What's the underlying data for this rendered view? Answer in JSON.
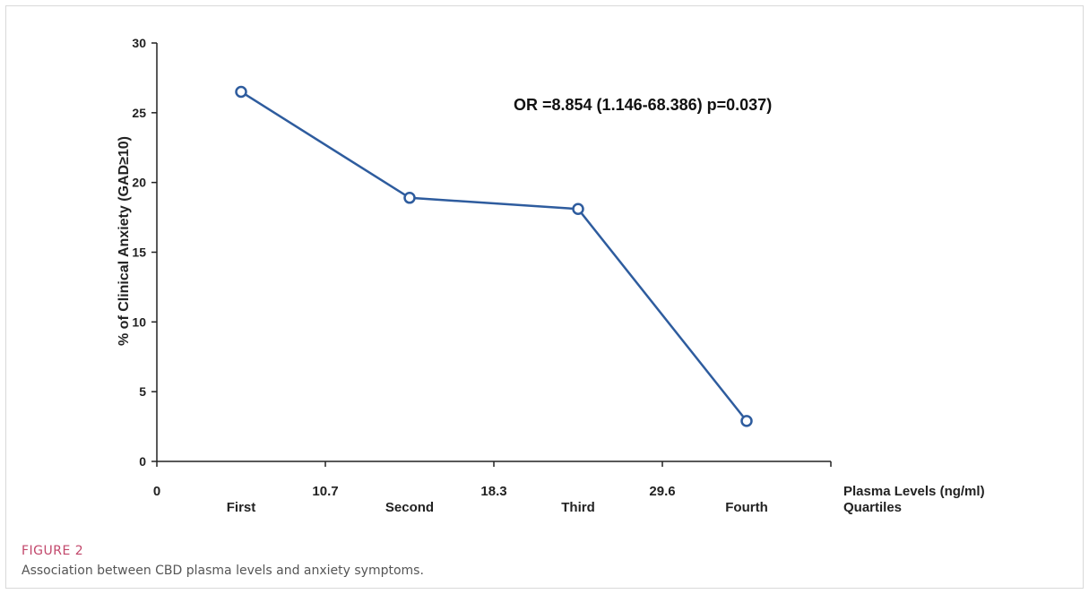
{
  "figure": {
    "label": "FIGURE 2",
    "caption": "Association between CBD plasma levels and anxiety symptoms."
  },
  "chart_data": {
    "type": "line",
    "categories": [
      "First",
      "Second",
      "Third",
      "Fourth"
    ],
    "values": [
      26.5,
      18.9,
      18.1,
      2.9
    ],
    "boundary_ticks": [
      "0",
      "10.7",
      "18.3",
      "29.6"
    ],
    "ylabel": "% of Clinical Anxiety (GAD≥10)",
    "xlabel_line1": "Plasma Levels (ng/ml)",
    "xlabel_line2": "Quartiles",
    "ylim": [
      0,
      30
    ],
    "yticks": [
      0,
      5,
      10,
      15,
      20,
      25,
      30
    ],
    "annotation": "OR =8.854 (1.146-68.386) p=0.037)",
    "grid": false,
    "line_color": "#2e5c9e",
    "marker": "open-circle"
  }
}
